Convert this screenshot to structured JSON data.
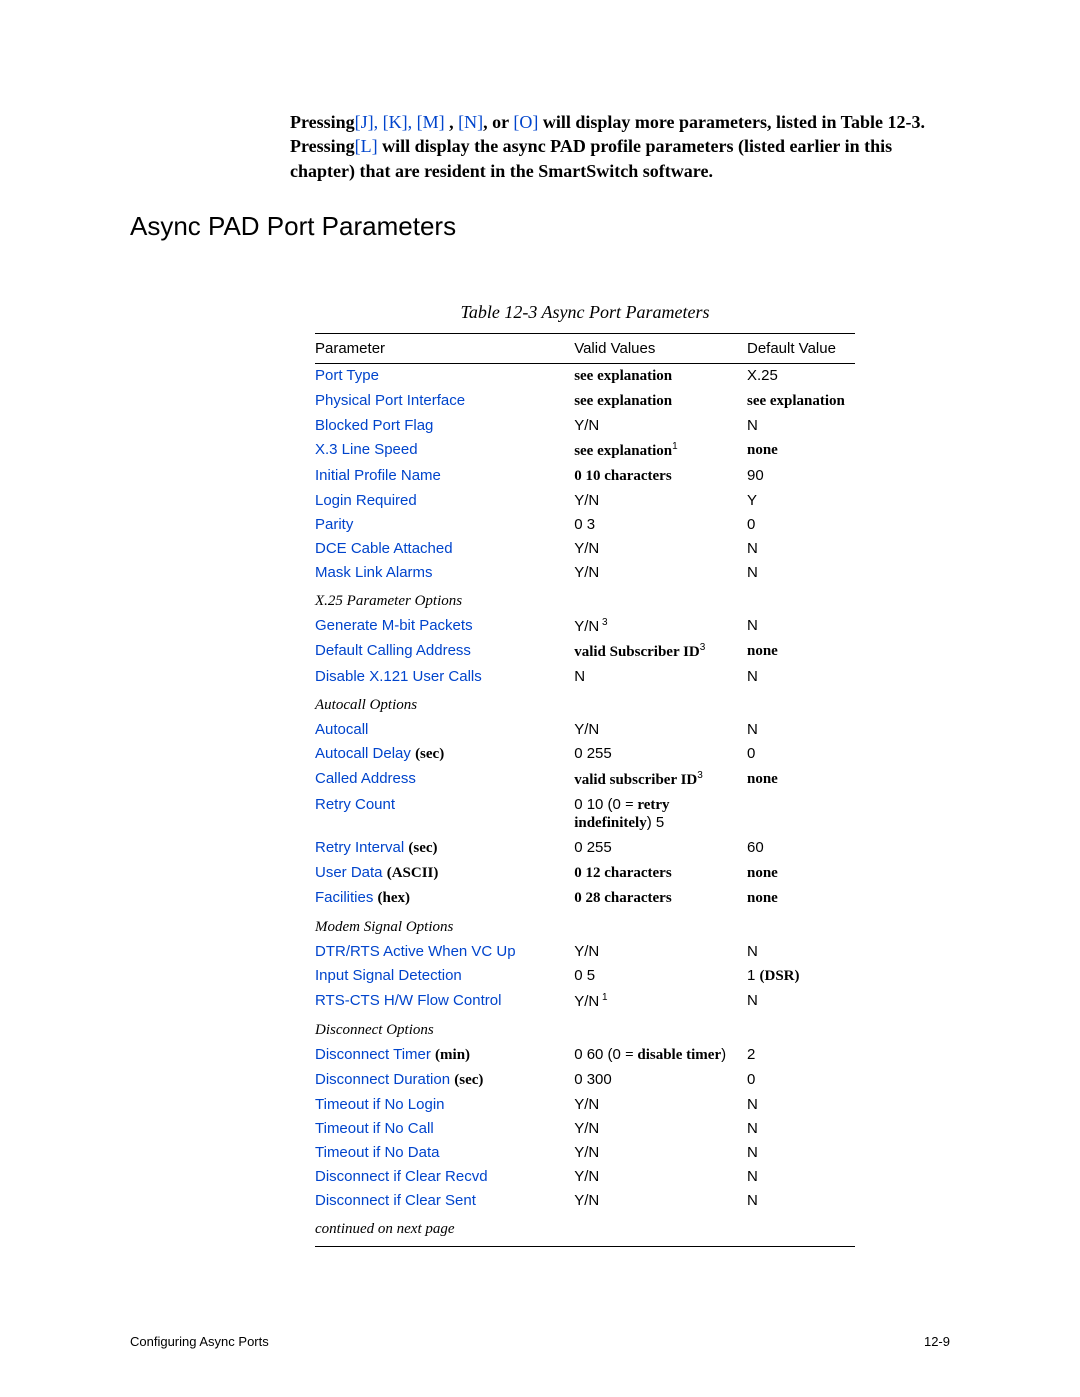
{
  "intro": {
    "line1_pre": "Pressing",
    "line1_keys": "[J], [K], [M]",
    "line1_mid": " , ",
    "line1_keyN": "[N]",
    "line1_mid2": ", or ",
    "line1_keyO": "[O]",
    "line1_post": " will display more parameters, listed in Table 12-3.",
    "line2_pre": "Pressing",
    "line2_keyL": "[L]",
    "line2_post": " will display the async PAD profile parameters (listed earlier in this chapter) that are resident in the SmartSwitch software."
  },
  "section_title": "Async PAD Port Parameters",
  "table_caption": "Table 12-3   Async Port Parameters",
  "headers": {
    "p": "Parameter",
    "v": "Valid Values",
    "d": "Default Value"
  },
  "rows": [
    {
      "t": "row",
      "p": "Port Type",
      "plink": true,
      "v": "see explanation",
      "vserif": true,
      "vbold": true,
      "d": "X.25"
    },
    {
      "t": "row",
      "p": "Physical Port Interface",
      "plink": true,
      "v": "see explanation",
      "vserif": true,
      "vbold": true,
      "d": "see explanation",
      "dserif": true,
      "dbold": true
    },
    {
      "t": "row",
      "p": "Blocked Port Flag",
      "plink": true,
      "v": "Y/N",
      "d": "N"
    },
    {
      "t": "row",
      "p": "X.3 Line Speed",
      "plink": true,
      "v": "see explanation",
      "vserif": true,
      "vbold": true,
      "vsup": "1",
      "d": "none",
      "dserif": true,
      "dbold": true
    },
    {
      "t": "row",
      "p": "Initial Profile Name",
      "plink": true,
      "v": "0 10 characters",
      "vserif": true,
      "vbold": true,
      "d": "90"
    },
    {
      "t": "row",
      "p": "Login Required",
      "plink": true,
      "v": "Y/N",
      "d": "Y"
    },
    {
      "t": "row",
      "p": "Parity",
      "plink": true,
      "v": "0 3",
      "d": "0"
    },
    {
      "t": "row",
      "p": "DCE Cable Attached",
      "plink": true,
      "v": "Y/N",
      "d": "N"
    },
    {
      "t": "row",
      "p": "Mask Link Alarms",
      "plink": true,
      "v": "Y/N",
      "d": "N"
    },
    {
      "t": "section",
      "label": "X.25 Parameter Options"
    },
    {
      "t": "row",
      "p": "Generate M-bit Packets",
      "plink": true,
      "v": "Y/N",
      "vsup": " 3",
      "d": "N"
    },
    {
      "t": "row",
      "p": "Default Calling Address",
      "plink": true,
      "v": "valid Subscriber ID",
      "vserif": true,
      "vbold": true,
      "vsup": "3",
      "d": "none",
      "dserif": true,
      "dbold": true
    },
    {
      "t": "row",
      "p": "Disable X.121 User Calls",
      "plink": true,
      "v": "N",
      "d": "N"
    },
    {
      "t": "section",
      "label": "Autocall Options"
    },
    {
      "t": "row",
      "p": "Autocall",
      "plink": true,
      "v": "Y/N",
      "d": "N"
    },
    {
      "t": "row",
      "p": "Autocall Delay",
      "plink": true,
      "punit": "(sec)",
      "v": "0 255",
      "d": "0"
    },
    {
      "t": "row",
      "p": "Called Address",
      "plink": true,
      "v": "valid subscriber ID",
      "vserif": true,
      "vbold": true,
      "vsup": "3",
      "d": "none",
      "dserif": true,
      "dbold": true
    },
    {
      "t": "row",
      "p": "Retry Count",
      "plink": true,
      "v_html": "0 10 (0 <span class='serif bold'>= retry indefinitely</span>) 5",
      "d": ""
    },
    {
      "t": "row",
      "p": "Retry Interval",
      "plink": true,
      "punit": "(sec)",
      "v": "0 255",
      "d": "60"
    },
    {
      "t": "row",
      "p": "User Data",
      "plink": true,
      "punit_bold": "(ASCII)",
      "v": "0 12 characters",
      "vserif": true,
      "vbold": true,
      "d": "none",
      "dserif": true,
      "dbold": true
    },
    {
      "t": "row",
      "p": "Facilities",
      "plink": true,
      "punit_bold": "(hex)",
      "v": "0 28 characters",
      "vserif": true,
      "vbold": true,
      "d": "none",
      "dserif": true,
      "dbold": true
    },
    {
      "t": "section",
      "label": "Modem Signal Options"
    },
    {
      "t": "row",
      "p": "DTR/RTS Active When VC Up",
      "plink": true,
      "v": "Y/N",
      "d": "N"
    },
    {
      "t": "row",
      "p": "Input Signal Detection",
      "plink": true,
      "v": "0 5",
      "d_html": "1  <span class='serif bold'>(DSR)</span>"
    },
    {
      "t": "row",
      "p": "RTS-CTS H/W Flow Control",
      "plink": true,
      "v": "Y/N",
      "vsup": " 1",
      "d": "N"
    },
    {
      "t": "section",
      "label": "Disconnect Options"
    },
    {
      "t": "row",
      "p": "Disconnect Timer",
      "plink": true,
      "punit": "(min)",
      "v_html": "0 60 (0 <span class='serif bold'>= disable timer</span>)",
      "d": "2"
    },
    {
      "t": "row",
      "p": "Disconnect Duration",
      "plink": true,
      "punit": "(sec)",
      "v": "0 300",
      "d": "0"
    },
    {
      "t": "row",
      "p": "Timeout if No Login",
      "plink": true,
      "v": "Y/N",
      "d": "N"
    },
    {
      "t": "row",
      "p": "Timeout if No Call",
      "plink": true,
      "v": "Y/N",
      "d": "N"
    },
    {
      "t": "row",
      "p": "Timeout if No Data",
      "plink": true,
      "v": "Y/N",
      "d": "N"
    },
    {
      "t": "row",
      "p": "Disconnect if Clear Recvd",
      "plink": true,
      "v": "Y/N",
      "d": "N"
    },
    {
      "t": "row",
      "p": "Disconnect if Clear Sent",
      "plink": true,
      "v": "Y/N",
      "d": "N"
    },
    {
      "t": "cont",
      "label": "continued on next page"
    }
  ],
  "footer": {
    "left": "Configuring Async Ports",
    "right": "12-9"
  }
}
